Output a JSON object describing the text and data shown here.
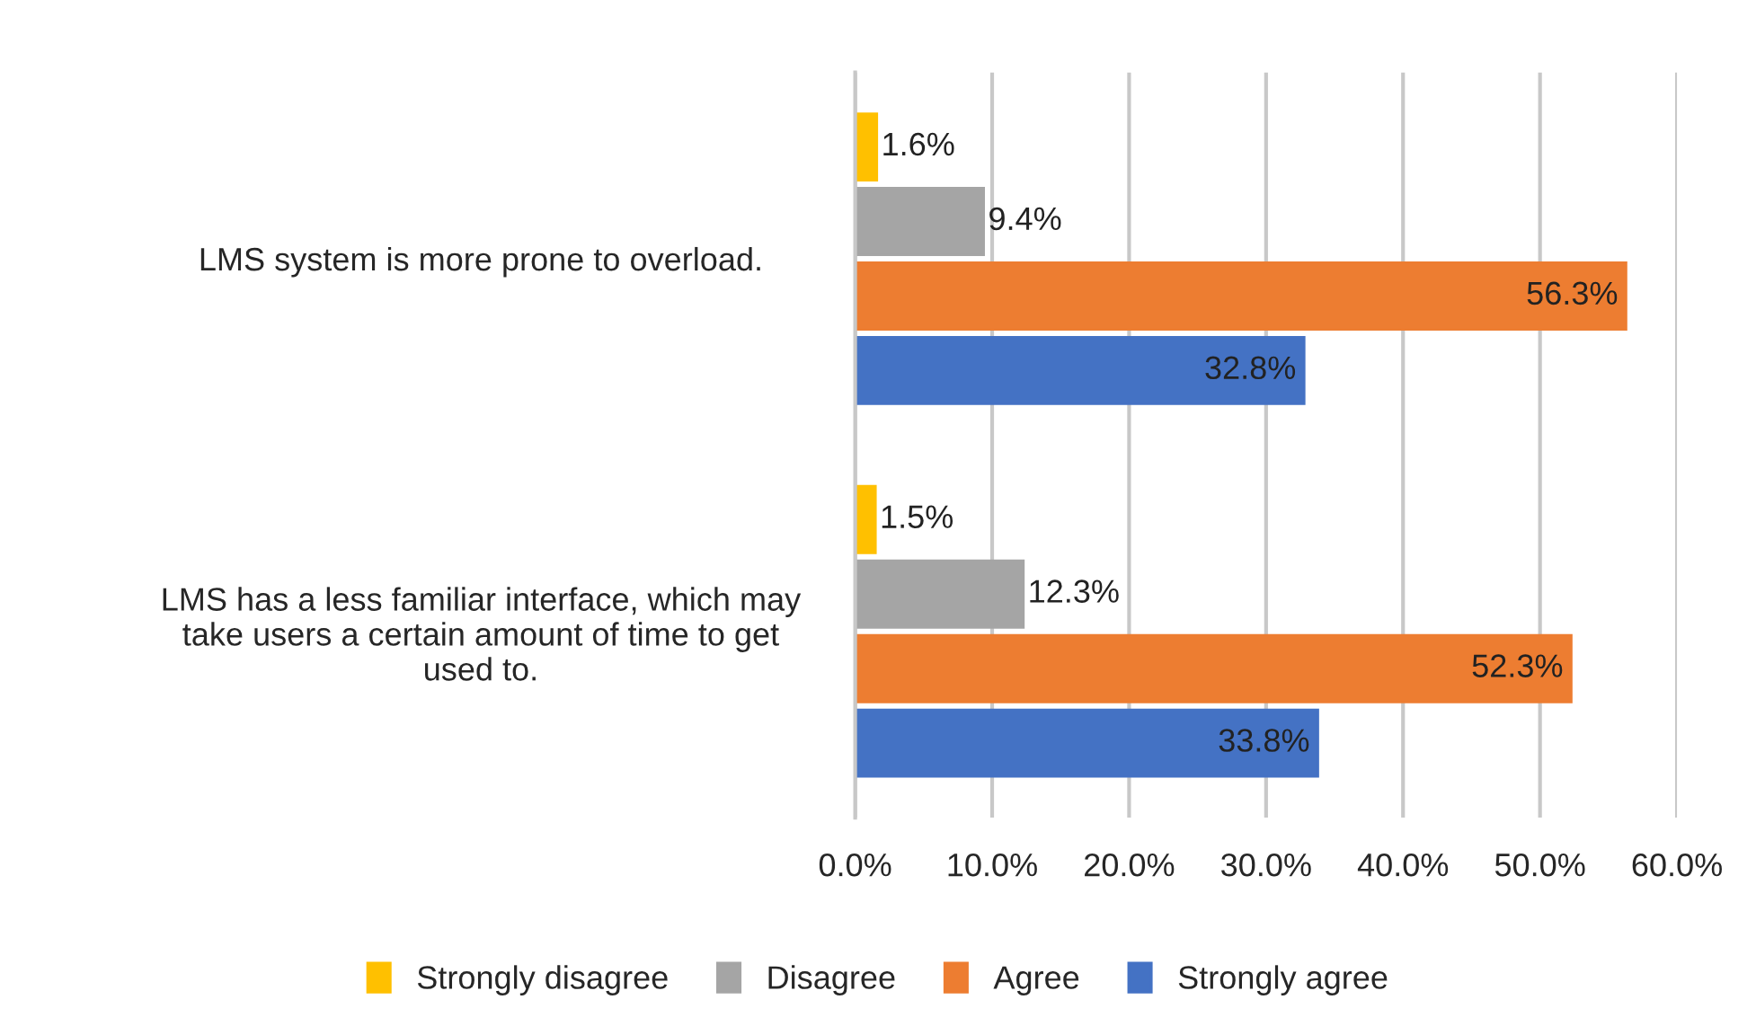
{
  "chart_data": {
    "type": "bar",
    "orientation": "horizontal",
    "categories": [
      "LMS system is more prone to overload.",
      "LMS has a less familiar interface, which may take users a certain amount of time to get used to."
    ],
    "series": [
      {
        "name": "Strongly disagree",
        "color": "#ffc000",
        "values": [
          1.6,
          1.5
        ],
        "value_labels": [
          "1.6%",
          "1.5%"
        ]
      },
      {
        "name": "Disagree",
        "color": "#a5a5a5",
        "values": [
          9.4,
          12.3
        ],
        "value_labels": [
          "9.4%",
          "12.3%"
        ]
      },
      {
        "name": "Agree",
        "color": "#ed7d31",
        "values": [
          56.3,
          52.3
        ],
        "value_labels": [
          "56.3%",
          "52.3%"
        ]
      },
      {
        "name": "Strongly agree",
        "color": "#4472c4",
        "values": [
          32.8,
          33.8
        ],
        "value_labels": [
          "32.8%",
          "33.8%"
        ]
      }
    ],
    "xlim": [
      0,
      60
    ],
    "xticks": [
      {
        "value": 0,
        "label": "0.0%"
      },
      {
        "value": 10,
        "label": "10.0%"
      },
      {
        "value": 20,
        "label": "20.0%"
      },
      {
        "value": 30,
        "label": "30.0%"
      },
      {
        "value": 40,
        "label": "40.0%"
      },
      {
        "value": 50,
        "label": "50.0%"
      },
      {
        "value": 60,
        "label": "60.0%"
      }
    ],
    "grid": "x",
    "legend": "bottom"
  }
}
